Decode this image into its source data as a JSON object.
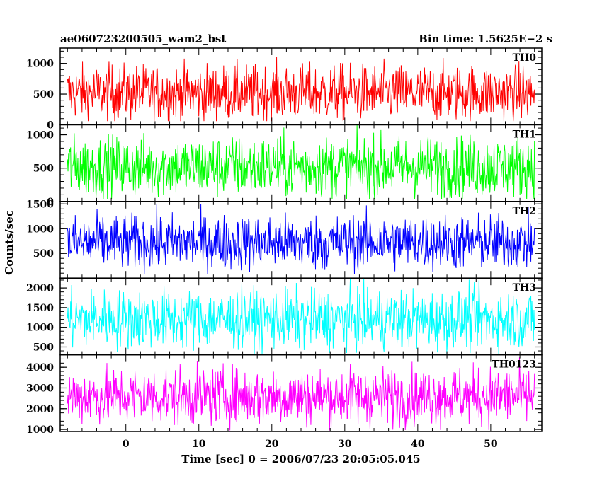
{
  "header": {
    "left_title": "ae060723200505_wam2_bst",
    "right_title": "Bin time: 1.5625E−2 s"
  },
  "chart_data": {
    "type": "line",
    "xlabel": "Time [sec] 0 = 2006/07/23 20:05:05.045",
    "ylabel": "Counts/sec",
    "xlim": [
      -9,
      57
    ],
    "x_ticks": [
      0,
      10,
      20,
      30,
      40,
      50
    ],
    "x_tick_labels": [
      "0",
      "10",
      "20",
      "30",
      "40",
      "50"
    ],
    "x_range_data": [
      -8,
      56
    ],
    "panels": [
      {
        "name": "TH0",
        "color": "#ff0000",
        "ylim": [
          0,
          1250
        ],
        "y_ticks": [
          0,
          500,
          1000
        ],
        "y_tick_labels": [
          "0",
          "500",
          "1000"
        ],
        "level": 520,
        "spread": 230,
        "min_clip": 60,
        "max_clip": 1250
      },
      {
        "name": "TH1",
        "color": "#00ff00",
        "ylim": [
          0,
          1150
        ],
        "y_ticks": [
          0,
          500,
          1000
        ],
        "y_tick_labels": [
          "0",
          "500",
          "1000"
        ],
        "level": 520,
        "spread": 230,
        "min_clip": 30,
        "max_clip": 1150
      },
      {
        "name": "TH2",
        "color": "#0000ff",
        "ylim": [
          0,
          1550
        ],
        "y_ticks": [
          500,
          1000,
          1500
        ],
        "y_tick_labels": [
          "500",
          "1000",
          "1500"
        ],
        "level": 720,
        "spread": 280,
        "min_clip": 80,
        "max_clip": 1550
      },
      {
        "name": "TH3",
        "color": "#00ffff",
        "ylim": [
          300,
          2250
        ],
        "y_ticks": [
          500,
          1000,
          1500,
          2000
        ],
        "y_tick_labels": [
          "500",
          "1000",
          "1500",
          "2000"
        ],
        "level": 1200,
        "spread": 380,
        "min_clip": 320,
        "max_clip": 2250
      },
      {
        "name": "TH0123",
        "color": "#ff00ff",
        "ylim": [
          900,
          4600
        ],
        "y_ticks": [
          1000,
          2000,
          3000,
          4000
        ],
        "y_tick_labels": [
          "1000",
          "2000",
          "3000",
          "4000"
        ],
        "level": 2600,
        "spread": 700,
        "min_clip": 950,
        "max_clip": 4600
      }
    ]
  }
}
